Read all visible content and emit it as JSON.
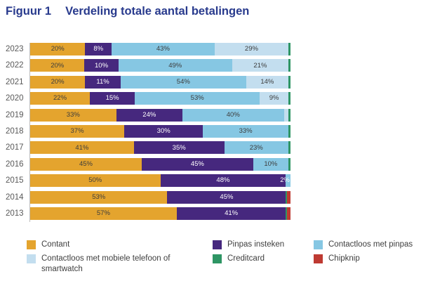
{
  "title": {
    "figure_label": "Figuur 1",
    "text": "Verdeling totale aantal betalingen",
    "color": "#283A8D"
  },
  "chart_data": {
    "type": "bar",
    "orientation": "horizontal",
    "stacked": true,
    "unit": "%",
    "xlim": [
      0,
      100
    ],
    "grid": false,
    "legend_position": "bottom",
    "label_min": 8,
    "categories": [
      "2023",
      "2022",
      "2021",
      "2020",
      "2019",
      "2018",
      "2017",
      "2016",
      "2015",
      "2014",
      "2013"
    ],
    "series": [
      {
        "name": "Contant",
        "color": "#E4A42E",
        "text": "dark",
        "values": [
          20,
          20,
          20,
          22,
          33,
          37,
          41,
          45,
          50,
          53,
          57
        ]
      },
      {
        "name": "Pinpas insteken",
        "color": "#46287E",
        "text": "light",
        "values": [
          8,
          10,
          11,
          15,
          24,
          30,
          35,
          45,
          48,
          45,
          41
        ]
      },
      {
        "name": "Contactloos met pinpas",
        "color": "#86C7E3",
        "text": "dark",
        "values": [
          43,
          49,
          54,
          53,
          40,
          33,
          23,
          10,
          2,
          0,
          0
        ]
      },
      {
        "name": "Contactloos met mobiele telefoon of smartwatch",
        "color": "#C3DEEF",
        "text": "dark",
        "values": [
          29,
          21,
          14,
          9,
          2,
          0,
          0,
          0,
          0,
          0,
          0
        ]
      },
      {
        "name": "Creditcard",
        "color": "#2E9564",
        "text": "light",
        "values": [
          1,
          1,
          1,
          1,
          1,
          1,
          1,
          1,
          0,
          0.5,
          0.5
        ]
      },
      {
        "name": "Chipknip",
        "color": "#BE3A32",
        "text": "light",
        "values": [
          0,
          0,
          0,
          0,
          0,
          0,
          0,
          0,
          0,
          1.5,
          1.5
        ]
      }
    ],
    "label_overrides": [
      {
        "category_index": 8,
        "series": "Contactloos met pinpas",
        "placement": "outside-left"
      }
    ]
  },
  "legend": {
    "columns": [
      [
        "Contant",
        "Contactloos met mobiele telefoon of smartwatch"
      ],
      [
        "Pinpas insteken",
        "Creditcard"
      ],
      [
        "Contactloos met pinpas",
        "Chipknip"
      ]
    ]
  }
}
